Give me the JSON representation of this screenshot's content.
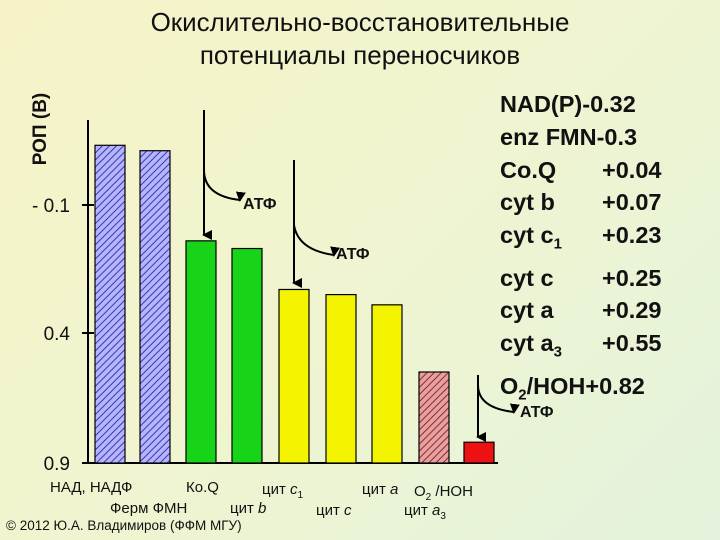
{
  "title_line1": "Окислительно-восстановительные",
  "title_line2": "потенциалы переносчиков",
  "ylabel": "РОП (В)",
  "potentials": [
    {
      "name": "NAD(P)",
      "value": "-0.32"
    },
    {
      "name": "enz FMN",
      "value": "-0.3"
    },
    {
      "name": "Co.Q",
      "value": "+0.04"
    },
    {
      "name": "cyt b",
      "value": "+0.07"
    },
    {
      "name": "cyt c",
      "sub": "1",
      "value": "+0.23"
    },
    {
      "name": "cyt c",
      "value": "+0.25"
    },
    {
      "name": "cyt a",
      "value": "+0.29"
    },
    {
      "name": "cyt a",
      "sub": "3",
      "value": "+0.55"
    },
    {
      "name": "O",
      "sub": "2",
      "name2": "/HOH",
      "value": "+0.82"
    }
  ],
  "atp_label": "АТФ",
  "footer": "© 2012 Ю.А. Владимиров (ФФМ МГУ)",
  "category_labels": [
    {
      "text": "НАД, НАДФ"
    },
    {
      "text": "Ко.Q"
    },
    {
      "prefix": "цит ",
      "italic": "c",
      "sub": "1"
    },
    {
      "prefix": "цит ",
      "italic": "a"
    },
    {
      "prefix": "O",
      "sub": "2",
      "suffix": " /HOH"
    },
    {
      "text": "Ферм ФМН"
    },
    {
      "prefix": "цит ",
      "italic": "b"
    },
    {
      "prefix": "цит ",
      "italic": "c"
    },
    {
      "prefix": "цит ",
      "italic": "a",
      "sub": "3"
    }
  ],
  "chart_data": {
    "type": "bar",
    "ylabel": "РОП (В)",
    "y_tick_labels": [
      "- 0.1",
      "0.4",
      "0.9"
    ],
    "y_ticks": [
      -0.1,
      0.4,
      0.9
    ],
    "ylim": [
      -0.45,
      0.9
    ],
    "y_inverted": true,
    "categories": [
      "NAD(P)",
      "enz FMN",
      "Co.Q",
      "cyt b",
      "cyt c1",
      "cyt c",
      "cyt a",
      "cyt a3",
      "O2/HOH"
    ],
    "values": [
      -0.32,
      -0.3,
      0.04,
      0.07,
      0.23,
      0.25,
      0.29,
      0.55,
      0.82
    ],
    "colors": [
      "#8c8cf0",
      "#8c8cf0",
      "#18d418",
      "#18d418",
      "#f4f400",
      "#f4f400",
      "#f4f400",
      "#c05a5a",
      "#ee1111"
    ],
    "hatched": [
      true,
      true,
      false,
      false,
      false,
      false,
      false,
      true,
      false
    ],
    "atp_sites": [
      "between enz FMN and Co.Q",
      "between cyt b and cyt c1",
      "between cyt a3 and O2/HOH"
    ]
  }
}
